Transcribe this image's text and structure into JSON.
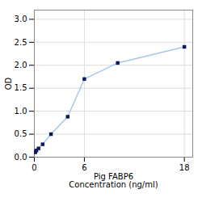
{
  "chart_data": {
    "type": "line",
    "xlabel": "Pig FABP6\nConcentration (ng/ml)",
    "ylabel": "OD",
    "x": [
      0.0625,
      0.125,
      0.25,
      0.5,
      1,
      2,
      4,
      6,
      10,
      18
    ],
    "y": [
      0.105,
      0.115,
      0.145,
      0.19,
      0.28,
      0.5,
      0.88,
      1.7,
      2.05,
      2.4
    ],
    "color": "#a8c8e8",
    "marker": "square",
    "marker_color": "#0a1a5c",
    "xlim": [
      0,
      19
    ],
    "ylim": [
      0,
      3.2
    ],
    "xticks": [
      0,
      6,
      18
    ],
    "yticks": [
      {
        "value": 0,
        "label": "0.0"
      },
      0.5,
      {
        "value": 1.0,
        "label": "1.0"
      },
      {
        "value": 1.5,
        "label": "1.5"
      },
      {
        "value": 2.0,
        "label": "2.0"
      },
      {
        "value": 2.5,
        "label": "2.5"
      },
      {
        "value": 3.0,
        "label": "3.0"
      }
    ],
    "grid": true,
    "grid_color": "#dddddd"
  }
}
